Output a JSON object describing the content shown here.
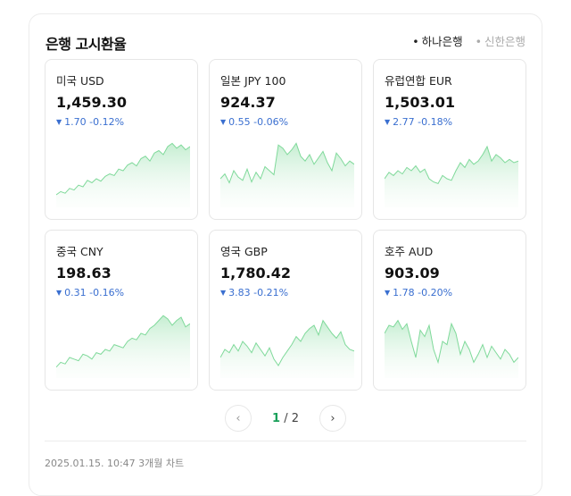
{
  "header": {
    "title": "은행 고시환율",
    "banks": [
      {
        "label": "하나은행",
        "active": true
      },
      {
        "label": "신한은행",
        "active": false
      }
    ]
  },
  "colors": {
    "down": "#3a6fd0",
    "line": "#7fd99a",
    "fill": "#e6f7ea",
    "page_active": "#1aa05a"
  },
  "cards": [
    {
      "name": "미국 USD",
      "rate": "1,459.30",
      "direction": "down",
      "change": "1.70",
      "percent": "-0.12%",
      "trend": [
        10,
        14,
        12,
        18,
        16,
        22,
        20,
        28,
        25,
        30,
        27,
        33,
        36,
        34,
        42,
        40,
        47,
        50,
        46,
        55,
        58,
        52,
        62,
        65,
        60,
        70,
        74,
        68,
        72,
        66,
        70
      ]
    },
    {
      "name": "일본 JPY 100",
      "rate": "924.37",
      "direction": "down",
      "change": "0.55",
      "percent": "-0.06%",
      "trend": [
        30,
        36,
        25,
        40,
        32,
        28,
        42,
        26,
        38,
        30,
        45,
        40,
        35,
        72,
        68,
        60,
        66,
        74,
        58,
        52,
        60,
        48,
        56,
        64,
        50,
        40,
        62,
        55,
        46,
        52,
        48
      ]
    },
    {
      "name": "유럽연합 EUR",
      "rate": "1,503.01",
      "direction": "down",
      "change": "2.77",
      "percent": "-0.18%",
      "trend": [
        30,
        38,
        34,
        40,
        36,
        44,
        40,
        46,
        38,
        42,
        30,
        26,
        24,
        34,
        30,
        28,
        40,
        50,
        44,
        54,
        48,
        52,
        60,
        70,
        52,
        60,
        56,
        50,
        54,
        50,
        52
      ]
    },
    {
      "name": "중국 CNY",
      "rate": "198.63",
      "direction": "down",
      "change": "0.31",
      "percent": "-0.16%",
      "trend": [
        8,
        14,
        12,
        20,
        18,
        16,
        24,
        22,
        18,
        26,
        24,
        30,
        28,
        36,
        34,
        32,
        40,
        44,
        42,
        50,
        48,
        56,
        60,
        66,
        72,
        68,
        60,
        66,
        70,
        58,
        62
      ]
    },
    {
      "name": "영국 GBP",
      "rate": "1,780.42",
      "direction": "down",
      "change": "3.83",
      "percent": "-0.21%",
      "trend": [
        20,
        30,
        26,
        36,
        28,
        40,
        34,
        26,
        38,
        30,
        22,
        32,
        18,
        10,
        20,
        28,
        36,
        46,
        40,
        50,
        56,
        60,
        48,
        66,
        58,
        50,
        44,
        52,
        36,
        30,
        28
      ]
    },
    {
      "name": "호주 AUD",
      "rate": "903.09",
      "direction": "down",
      "change": "1.78",
      "percent": "-0.20%",
      "trend": [
        50,
        60,
        58,
        66,
        55,
        62,
        40,
        20,
        54,
        46,
        60,
        30,
        14,
        40,
        36,
        62,
        50,
        24,
        40,
        30,
        14,
        24,
        36,
        20,
        34,
        26,
        18,
        30,
        24,
        14,
        20
      ]
    }
  ],
  "pager": {
    "current": "1",
    "separator": "/",
    "total": "2"
  },
  "footer": {
    "text": "2025.01.15. 10:47 3개월 차트"
  }
}
